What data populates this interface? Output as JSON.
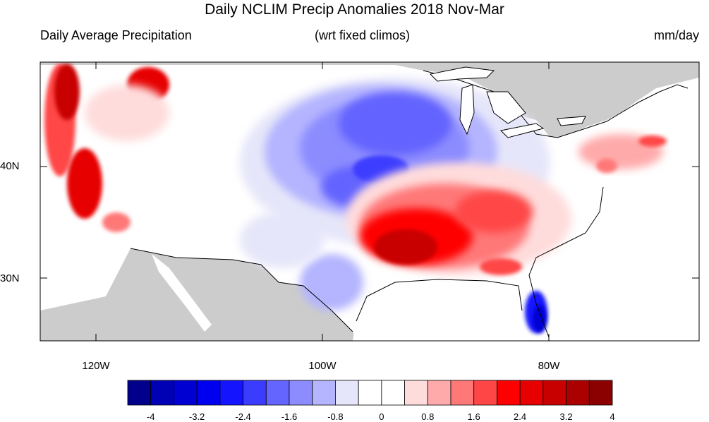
{
  "title": "Daily NCLIM Precip Anomalies 2018 Nov-Mar",
  "subtitle_left": "Daily Average Precipitation",
  "subtitle_center": "(wrt fixed climos)",
  "subtitle_right": "mm/day",
  "lat_labels": [
    "40N",
    "30N"
  ],
  "lon_labels": [
    "120W",
    "100W",
    "80W"
  ],
  "colorbar": {
    "labels": [
      "-4",
      "-3.2",
      "-2.4",
      "-1.6",
      "-0.8",
      "0",
      "0.8",
      "1.6",
      "2.4",
      "3.2",
      "4"
    ],
    "colors": [
      "#00008b",
      "#0000b4",
      "#0000d2",
      "#0000f0",
      "#1414ff",
      "#3c3cff",
      "#6464ff",
      "#8c8cff",
      "#b4b4ff",
      "#e6e6fa",
      "#ffffff",
      "#ffffff",
      "#ffdcdc",
      "#ffaaaa",
      "#ff7878",
      "#ff4646",
      "#ff0000",
      "#e60000",
      "#c80000",
      "#aa0000",
      "#8b0000"
    ]
  },
  "colors": {
    "land_masked": "#cccccc",
    "wet_anomaly": "#e60000",
    "dry_anomaly": "#4646ff"
  }
}
